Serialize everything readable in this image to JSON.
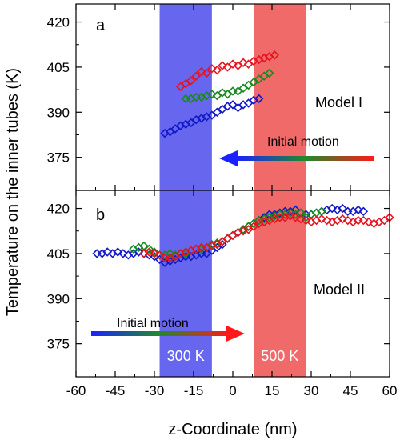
{
  "chart_data": [
    {
      "panel": "a",
      "type": "scatter",
      "panel_label": "a",
      "model_label": "Model I",
      "arrow_label": "Initial motion",
      "arrow_direction": "left",
      "xlim": [
        -60,
        60
      ],
      "ylim": [
        364,
        426
      ],
      "yticks": [
        375,
        390,
        405,
        420
      ],
      "bands": [
        {
          "from": -28,
          "to": -8,
          "color": "#6666ee",
          "label": ""
        },
        {
          "from": 8,
          "to": 28,
          "color": "#f06a6a",
          "label": ""
        }
      ],
      "series": [
        {
          "color": "#e8121e",
          "x": [
            -20,
            -18,
            -16,
            -14,
            -12,
            -10,
            -8,
            -6,
            -4,
            -2,
            0,
            2,
            4,
            6,
            8,
            10,
            12,
            14,
            16
          ],
          "y": [
            398.5,
            399.5,
            400.5,
            402.0,
            403.5,
            403.0,
            404.5,
            404.0,
            405.5,
            405.0,
            406.0,
            405.5,
            406.5,
            406.0,
            407.0,
            407.5,
            408.0,
            408.5,
            409.0
          ]
        },
        {
          "color": "#178a1e",
          "x": [
            -18,
            -16,
            -14,
            -12,
            -10,
            -8,
            -6,
            -4,
            -2,
            0,
            2,
            4,
            6,
            8,
            10,
            12,
            14
          ],
          "y": [
            394.5,
            394.5,
            395.0,
            395.0,
            395.5,
            396.0,
            395.5,
            396.5,
            396.0,
            397.0,
            397.0,
            398.0,
            399.0,
            400.0,
            401.0,
            402.0,
            403.0
          ]
        },
        {
          "color": "#1018c8",
          "x": [
            -26,
            -24,
            -22,
            -20,
            -18,
            -16,
            -14,
            -12,
            -10,
            -8,
            -6,
            -4,
            -2,
            0,
            2,
            4,
            6,
            8,
            10
          ],
          "y": [
            383.0,
            383.5,
            384.5,
            385.5,
            386.0,
            386.5,
            387.5,
            388.0,
            388.5,
            389.0,
            390.0,
            391.0,
            392.0,
            392.5,
            391.5,
            392.5,
            393.0,
            394.0,
            394.5
          ]
        }
      ]
    },
    {
      "panel": "b",
      "type": "scatter",
      "panel_label": "b",
      "model_label": "Model II",
      "arrow_label": "Initial motion",
      "arrow_direction": "right",
      "xlim": [
        -60,
        60
      ],
      "xticks": [
        -60,
        -45,
        -30,
        -15,
        0,
        15,
        30,
        45,
        60
      ],
      "ylim": [
        364,
        426
      ],
      "yticks": [
        375,
        390,
        405,
        420
      ],
      "xlabel": "z-Coordinate (nm)",
      "bands": [
        {
          "from": -28,
          "to": -8,
          "color": "#6666ee",
          "label": "300 K"
        },
        {
          "from": 8,
          "to": 28,
          "color": "#f06a6a",
          "label": "500 K"
        }
      ],
      "series": [
        {
          "color": "#1018c8",
          "x": [
            -52,
            -50,
            -48,
            -46,
            -44,
            -42,
            -40,
            -38,
            -36,
            -34,
            -32,
            -30,
            -28,
            -26,
            -24,
            -22,
            -20,
            -18,
            -16,
            -14,
            -12,
            -10,
            -8,
            -6,
            -4,
            -2,
            0,
            2,
            4,
            6,
            8,
            10,
            12,
            14,
            16,
            18,
            20,
            22,
            24,
            26,
            28,
            30,
            32,
            34,
            36,
            38,
            40,
            42,
            44,
            46,
            48,
            50
          ],
          "y": [
            405,
            405,
            405.5,
            405,
            405.5,
            405,
            404.5,
            405,
            405.5,
            405,
            404.5,
            404,
            403,
            402,
            402.5,
            403,
            403.5,
            404,
            404,
            404.5,
            405,
            405,
            406,
            407,
            408,
            410,
            411,
            412,
            413,
            414,
            415,
            416,
            417,
            418,
            418,
            418.5,
            419,
            419,
            419.5,
            418.5,
            418,
            418,
            418.5,
            419,
            419.5,
            420,
            419.5,
            420,
            419,
            419,
            419.5,
            419
          ]
        },
        {
          "color": "#178a1e",
          "x": [
            -38,
            -36,
            -34,
            -32,
            -30,
            -28,
            -26,
            -24,
            -22,
            -20,
            -18,
            -16,
            -14,
            -12,
            -10,
            -8,
            -6,
            -4,
            -2,
            0,
            2,
            4,
            6,
            8,
            10,
            12,
            14,
            16,
            18,
            20,
            22,
            24,
            26,
            28,
            30,
            32,
            34
          ],
          "y": [
            406.5,
            407,
            407.5,
            406.5,
            405.5,
            404.5,
            404.5,
            405,
            404.5,
            405,
            405,
            406,
            406.5,
            406.5,
            407,
            408,
            408.5,
            409,
            410,
            411,
            412,
            413,
            414,
            415,
            416,
            416.5,
            417,
            417.5,
            418,
            418,
            418.5,
            418,
            418.5,
            417,
            418,
            418.5,
            419
          ]
        },
        {
          "color": "#e8121e",
          "x": [
            -34,
            -32,
            -30,
            -28,
            -26,
            -24,
            -22,
            -20,
            -18,
            -16,
            -14,
            -12,
            -10,
            -8,
            -6,
            -4,
            -2,
            0,
            2,
            4,
            6,
            8,
            10,
            12,
            14,
            16,
            18,
            20,
            22,
            24,
            26,
            28,
            30,
            32,
            34,
            36,
            38,
            40,
            42,
            44,
            46,
            48,
            50,
            52,
            54,
            56,
            58,
            60
          ],
          "y": [
            405,
            405.5,
            405,
            404.5,
            403.5,
            403.5,
            404,
            405,
            405.5,
            406,
            406.5,
            407,
            407,
            407.5,
            408,
            409,
            410,
            411,
            412,
            412.5,
            413,
            414,
            415,
            415.5,
            416,
            416.5,
            417,
            417,
            417.5,
            417,
            416.5,
            416,
            415.5,
            416,
            416.5,
            416,
            415.5,
            416,
            416.5,
            416,
            415.5,
            416,
            416,
            415.5,
            415,
            415.5,
            416,
            417
          ]
        }
      ]
    }
  ],
  "axes": {
    "ylabel": "Temperature on the inner tubes (K)",
    "xlabel": "z-Coordinate (nm)",
    "colors": {
      "blue": "#1018c8",
      "green": "#178a1e",
      "red": "#e8121e"
    }
  }
}
